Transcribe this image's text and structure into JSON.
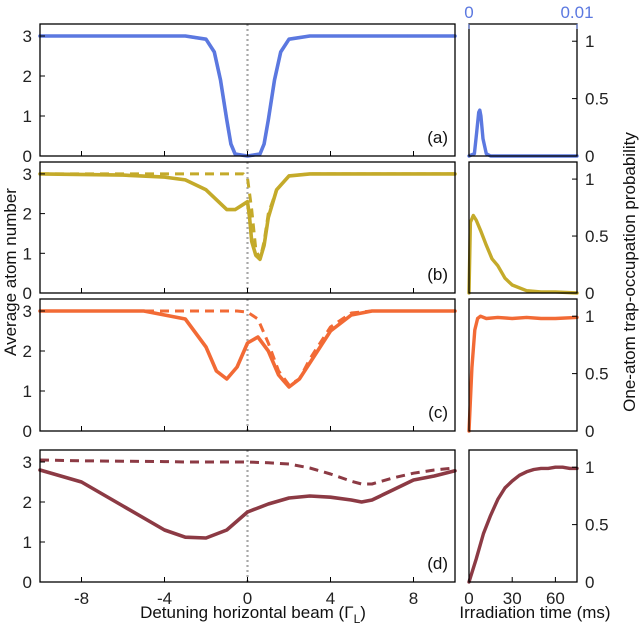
{
  "colors": {
    "a": "#5b78e0",
    "b": "#c4aa2a",
    "c": "#f26a35",
    "d": "#8c3a44",
    "marker": "#a8a8a8",
    "axis": "#000000"
  },
  "labels": {
    "ylabel_left": "Average atom number",
    "ylabel_right": "One-atom trap-occupation probability",
    "xlabel_left_main": "Detuning horizontal beam (Γ",
    "xlabel_left_sub": "L",
    "xlabel_left_close": ")",
    "xlabel_right": "Irradiation time (ms)"
  },
  "chart_data": [
    {
      "id": "a",
      "type": "line",
      "panel_label": "(a)",
      "xlabel": "Detuning horizontal beam (ΓL)",
      "ylabel": "Average atom number",
      "xlim": [
        -10,
        10
      ],
      "ylim": [
        0,
        3.3
      ],
      "xticks": [
        "-8",
        "-4",
        "0",
        "4",
        "8"
      ],
      "yticks": [
        "0",
        "1",
        "2",
        "3"
      ],
      "x": [
        -10,
        -6,
        -3,
        -2,
        -1.6,
        -1.3,
        -1.0,
        -0.8,
        -0.6,
        0,
        0.6,
        0.8,
        1.0,
        1.3,
        1.6,
        2,
        3,
        6,
        10
      ],
      "series": [
        {
          "name": "measured",
          "style": "solid",
          "values": [
            3.0,
            3.0,
            3.0,
            2.92,
            2.6,
            1.9,
            0.9,
            0.3,
            0.05,
            0.0,
            0.05,
            0.3,
            0.9,
            1.9,
            2.6,
            2.92,
            3.0,
            3.0,
            3.0
          ]
        },
        {
          "name": "model",
          "style": "dashed",
          "values": [
            3.0,
            3.0,
            3.0,
            2.92,
            2.6,
            1.9,
            0.9,
            0.3,
            0.05,
            0.0,
            0.05,
            0.3,
            0.9,
            1.9,
            2.6,
            2.92,
            3.0,
            3.0,
            3.0
          ]
        }
      ]
    },
    {
      "id": "b",
      "type": "line",
      "panel_label": "(b)",
      "xlim": [
        -10,
        10
      ],
      "ylim": [
        0,
        3.3
      ],
      "yticks": [
        "0",
        "1",
        "2",
        "3"
      ],
      "x_measured": [
        -10,
        -6,
        -4,
        -3,
        -2,
        -1.5,
        -1,
        -0.6,
        -0.3,
        0,
        0.1,
        0.2,
        0.4,
        0.6,
        0.8,
        1.0,
        1.4,
        2,
        3,
        5,
        10
      ],
      "series": [
        {
          "name": "measured",
          "style": "solid",
          "values": [
            3.0,
            2.97,
            2.92,
            2.85,
            2.6,
            2.35,
            2.1,
            2.1,
            2.2,
            2.3,
            1.9,
            1.3,
            0.95,
            0.85,
            1.2,
            1.9,
            2.6,
            2.95,
            3.0,
            3.0,
            3.0
          ]
        },
        {
          "name": "model",
          "style": "dashed",
          "x": [
            -10,
            -2,
            -0.5,
            -0.2,
            0,
            0.2,
            0.4,
            0.6,
            0.8,
            1.0,
            1.4,
            2,
            3,
            10
          ],
          "values": [
            3.0,
            3.0,
            3.0,
            3.0,
            2.9,
            2.1,
            1.1,
            0.85,
            1.3,
            2.0,
            2.6,
            2.95,
            3.0,
            3.0
          ]
        }
      ]
    },
    {
      "id": "c",
      "type": "line",
      "panel_label": "(c)",
      "xlim": [
        -10,
        10
      ],
      "ylim": [
        0,
        3.3
      ],
      "yticks": [
        "0",
        "1",
        "2",
        "3"
      ],
      "x": [
        -10,
        -5,
        -3,
        -2,
        -1.5,
        -1,
        -0.5,
        0,
        0.5,
        1,
        1.5,
        2,
        2.5,
        3,
        4,
        5,
        6,
        10
      ],
      "series": [
        {
          "name": "measured",
          "style": "solid",
          "values": [
            3.0,
            3.0,
            2.8,
            2.1,
            1.5,
            1.3,
            1.6,
            2.2,
            2.35,
            2.0,
            1.4,
            1.1,
            1.3,
            1.7,
            2.5,
            2.9,
            3.0,
            3.0
          ]
        },
        {
          "name": "model",
          "style": "dashed",
          "values": [
            3.0,
            3.0,
            3.0,
            3.0,
            3.0,
            3.0,
            3.0,
            2.97,
            2.8,
            2.2,
            1.5,
            1.15,
            1.3,
            1.8,
            2.6,
            2.95,
            3.0,
            3.0
          ]
        }
      ]
    },
    {
      "id": "d",
      "type": "line",
      "panel_label": "(d)",
      "xlabel": "Detuning horizontal beam (ΓL)",
      "xlim": [
        -10,
        10
      ],
      "ylim": [
        0,
        3.3
      ],
      "xticks": [
        "-8",
        "-4",
        "0",
        "4",
        "8"
      ],
      "yticks": [
        "0",
        "1",
        "2",
        "3"
      ],
      "x": [
        -10,
        -8,
        -6,
        -4,
        -3,
        -2,
        -1,
        0,
        1,
        2,
        3,
        4,
        5,
        5.5,
        6,
        7,
        8,
        9,
        10
      ],
      "series": [
        {
          "name": "measured",
          "style": "solid",
          "values": [
            2.8,
            2.5,
            1.9,
            1.3,
            1.12,
            1.1,
            1.3,
            1.75,
            1.95,
            2.1,
            2.15,
            2.12,
            2.05,
            2.0,
            2.05,
            2.3,
            2.55,
            2.65,
            2.78
          ]
        },
        {
          "name": "model",
          "style": "dashed",
          "values": [
            3.05,
            3.03,
            3.02,
            3.01,
            3.0,
            3.0,
            3.0,
            3.0,
            2.98,
            2.95,
            2.85,
            2.7,
            2.52,
            2.45,
            2.45,
            2.6,
            2.72,
            2.8,
            2.85
          ]
        }
      ]
    },
    {
      "id": "a-right",
      "type": "line",
      "xlabel": "Irradiation time (ms)",
      "ylabel": "One-atom trap-occupation probability",
      "xlim": [
        0,
        0.01
      ],
      "xlim_note": "upper axis in blue, shared panel",
      "top_xticks": [
        "0",
        "0.01"
      ],
      "ylim": [
        0,
        1.15
      ],
      "yticks": [
        "0",
        "0.5",
        "1"
      ],
      "x": [
        0,
        0.0005,
        0.0007,
        0.0009,
        0.001,
        0.0011,
        0.0013,
        0.0016,
        0.002,
        0.005,
        0.01
      ],
      "values": [
        0.0,
        0.02,
        0.2,
        0.38,
        0.4,
        0.35,
        0.15,
        0.02,
        0.0,
        0.0,
        0.0
      ]
    },
    {
      "id": "b-right",
      "type": "line",
      "xlim": [
        0,
        75
      ],
      "ylim": [
        0,
        1.15
      ],
      "yticks": [
        "0",
        "0.5",
        "1"
      ],
      "x": [
        0,
        1,
        3,
        5,
        8,
        12,
        16,
        20,
        25,
        30,
        40,
        50,
        60,
        75
      ],
      "values": [
        0.0,
        0.62,
        0.68,
        0.64,
        0.55,
        0.42,
        0.3,
        0.24,
        0.13,
        0.07,
        0.02,
        0.01,
        0.01,
        0.0
      ]
    },
    {
      "id": "c-right",
      "type": "line",
      "xlim": [
        0,
        75
      ],
      "ylim": [
        0,
        1.15
      ],
      "yticks": [
        "0",
        "0.5",
        "1"
      ],
      "x": [
        0,
        2,
        4,
        6,
        8,
        12,
        20,
        30,
        40,
        50,
        60,
        75
      ],
      "values": [
        0.0,
        0.55,
        0.88,
        0.98,
        1.0,
        0.98,
        0.99,
        0.98,
        0.99,
        0.98,
        0.98,
        0.99
      ]
    },
    {
      "id": "d-right",
      "type": "line",
      "xlim": [
        0,
        75
      ],
      "xticks": [
        "0",
        "30",
        "60"
      ],
      "ylim": [
        0,
        1.15
      ],
      "yticks": [
        "0",
        "0.5",
        "1"
      ],
      "x": [
        0,
        5,
        10,
        15,
        20,
        25,
        30,
        35,
        40,
        45,
        50,
        55,
        60,
        65,
        70,
        75
      ],
      "values": [
        0.0,
        0.2,
        0.42,
        0.58,
        0.72,
        0.82,
        0.88,
        0.93,
        0.96,
        0.98,
        0.99,
        0.99,
        1.0,
        1.0,
        0.99,
        0.99
      ]
    }
  ]
}
